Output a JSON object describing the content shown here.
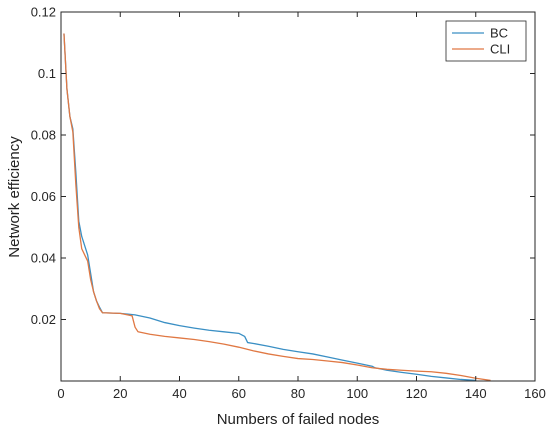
{
  "chart_data": {
    "type": "line",
    "title": "",
    "xlabel": "Numbers of failed nodes",
    "ylabel": "Network efficiency",
    "xlim": [
      0,
      160
    ],
    "ylim": [
      0,
      0.12
    ],
    "x_ticks": [
      0,
      20,
      40,
      60,
      80,
      100,
      120,
      140,
      160
    ],
    "y_ticks": [
      0.02,
      0.04,
      0.06,
      0.08,
      0.1,
      0.12
    ],
    "x_tick_labels": [
      "0",
      "20",
      "40",
      "60",
      "80",
      "100",
      "120",
      "140",
      "160"
    ],
    "y_tick_labels": [
      "0.02",
      "0.04",
      "0.06",
      "0.08",
      "0.1",
      "0.12"
    ],
    "grid": false,
    "legend_position": "top-right",
    "series": [
      {
        "name": "BC",
        "color": "#3a8fc4",
        "points": [
          [
            1,
            0.113
          ],
          [
            2,
            0.095
          ],
          [
            3,
            0.086
          ],
          [
            4,
            0.082
          ],
          [
            5,
            0.068
          ],
          [
            6,
            0.052
          ],
          [
            7,
            0.047
          ],
          [
            8,
            0.044
          ],
          [
            9,
            0.041
          ],
          [
            10,
            0.035
          ],
          [
            11,
            0.029
          ],
          [
            12,
            0.026
          ],
          [
            13,
            0.024
          ],
          [
            14,
            0.0222
          ],
          [
            20,
            0.022
          ],
          [
            25,
            0.0215
          ],
          [
            30,
            0.0205
          ],
          [
            35,
            0.019
          ],
          [
            40,
            0.018
          ],
          [
            45,
            0.0172
          ],
          [
            50,
            0.0165
          ],
          [
            55,
            0.016
          ],
          [
            60,
            0.0155
          ],
          [
            62,
            0.0145
          ],
          [
            63,
            0.0125
          ],
          [
            65,
            0.0122
          ],
          [
            70,
            0.0113
          ],
          [
            75,
            0.0103
          ],
          [
            80,
            0.0095
          ],
          [
            85,
            0.0088
          ],
          [
            90,
            0.0078
          ],
          [
            95,
            0.0068
          ],
          [
            100,
            0.0058
          ],
          [
            105,
            0.0048
          ],
          [
            106,
            0.0043
          ],
          [
            110,
            0.0035
          ],
          [
            115,
            0.0028
          ],
          [
            120,
            0.0022
          ],
          [
            125,
            0.0015
          ],
          [
            130,
            0.001
          ],
          [
            135,
            0.0005
          ],
          [
            140,
            0.0002
          ]
        ]
      },
      {
        "name": "CLI",
        "color": "#e07843",
        "points": [
          [
            1,
            0.113
          ],
          [
            2,
            0.095
          ],
          [
            3,
            0.086
          ],
          [
            4,
            0.081
          ],
          [
            5,
            0.064
          ],
          [
            6,
            0.05
          ],
          [
            7,
            0.043
          ],
          [
            8,
            0.041
          ],
          [
            9,
            0.039
          ],
          [
            10,
            0.033
          ],
          [
            11,
            0.029
          ],
          [
            12,
            0.026
          ],
          [
            13,
            0.0235
          ],
          [
            14,
            0.0222
          ],
          [
            20,
            0.022
          ],
          [
            24,
            0.0212
          ],
          [
            25,
            0.0175
          ],
          [
            26,
            0.016
          ],
          [
            30,
            0.0152
          ],
          [
            35,
            0.0145
          ],
          [
            40,
            0.014
          ],
          [
            45,
            0.0135
          ],
          [
            50,
            0.0128
          ],
          [
            55,
            0.012
          ],
          [
            60,
            0.011
          ],
          [
            65,
            0.0098
          ],
          [
            70,
            0.0088
          ],
          [
            75,
            0.008
          ],
          [
            80,
            0.0073
          ],
          [
            85,
            0.007
          ],
          [
            90,
            0.0065
          ],
          [
            95,
            0.006
          ],
          [
            100,
            0.0052
          ],
          [
            105,
            0.0043
          ],
          [
            110,
            0.0038
          ],
          [
            115,
            0.0035
          ],
          [
            120,
            0.0032
          ],
          [
            125,
            0.003
          ],
          [
            130,
            0.0025
          ],
          [
            135,
            0.0018
          ],
          [
            140,
            0.0009
          ],
          [
            145,
            0.0002
          ]
        ]
      }
    ]
  }
}
